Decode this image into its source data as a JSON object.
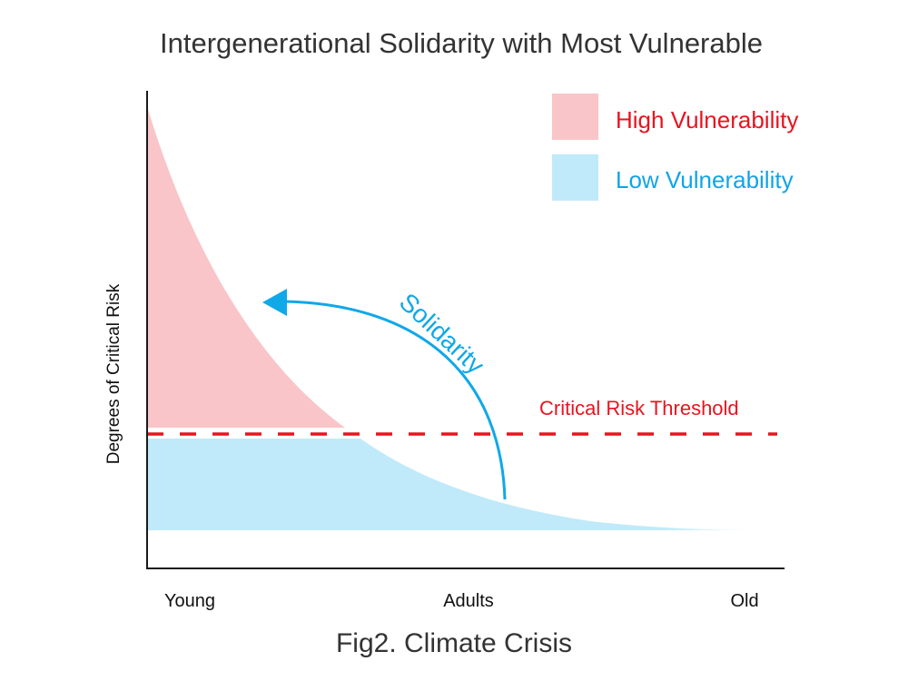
{
  "title": "Intergenerational Solidarity with Most Vulnerable",
  "caption": "Fig2. Climate Crisis",
  "axes": {
    "ylabel": "Degrees of Critical Risk",
    "xticks": [
      "Young",
      "Adults",
      "Old"
    ]
  },
  "legend": [
    {
      "label": "High Vulnerability",
      "swatch_color": "#f9c5c8",
      "text_color": "#e8141f"
    },
    {
      "label": "Low Vulnerability",
      "swatch_color": "#c0eaf9",
      "text_color": "#12a3e8"
    }
  ],
  "threshold": {
    "label": "Critical Risk Threshold",
    "color": "#e8141f"
  },
  "solidarity": {
    "label": "Solidarity",
    "color": "#10a8e8"
  },
  "colors": {
    "axis": "#1a1a1a",
    "high_fill": "#f9c5c8",
    "low_fill": "#c0eaf9"
  }
}
